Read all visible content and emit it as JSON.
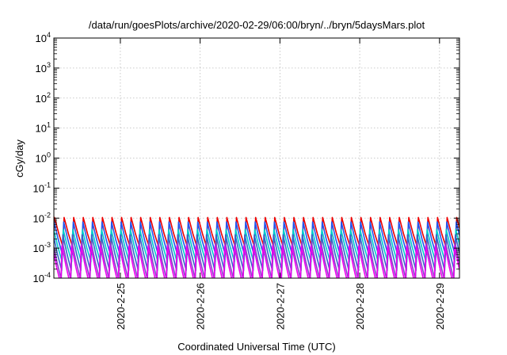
{
  "chart_data": {
    "type": "line",
    "title": "/data/run/goesPlots/archive/2020-02-29/06:00/bryn/../bryn/5daysMars.plot",
    "xlabel": "Coordinated Universal Time (UTC)",
    "ylabel": "cGy/day",
    "y_scale": "log",
    "ylim": [
      0.0001,
      10000
    ],
    "y_ticks": [
      {
        "base": "10",
        "exp": "4"
      },
      {
        "base": "10",
        "exp": "3"
      },
      {
        "base": "10",
        "exp": "2"
      },
      {
        "base": "10",
        "exp": "1"
      },
      {
        "base": "10",
        "exp": "0"
      },
      {
        "base": "10",
        "exp": "-1"
      },
      {
        "base": "10",
        "exp": "-2"
      },
      {
        "base": "10",
        "exp": "-3"
      },
      {
        "base": "10",
        "exp": "-4"
      }
    ],
    "xlim": [
      "2020-02-24 04:00",
      "2020-02-29 06:00"
    ],
    "x_ticks": [
      "2020-2-25",
      "2020-2-26",
      "2020-2-27",
      "2020-2-28",
      "2020-2-29"
    ],
    "grid": true,
    "cycle_hours": 2.88,
    "series": [
      {
        "color": "#ee0000",
        "peak": 0.0105,
        "trough": 0.0011
      },
      {
        "color": "#2255ee",
        "peak": 0.0075,
        "trough": 0.0006
      },
      {
        "color": "#00cccc",
        "peak": 0.0042,
        "trough": 0.00035
      },
      {
        "color": "#3366cc",
        "peak": 0.0028,
        "trough": 0.00018
      },
      {
        "color": "#8844cc",
        "peak": 0.0016,
        "trough": 9e-05
      },
      {
        "color": "#ee00ee",
        "peak": 0.0012,
        "trough": 6e-05
      }
    ]
  }
}
